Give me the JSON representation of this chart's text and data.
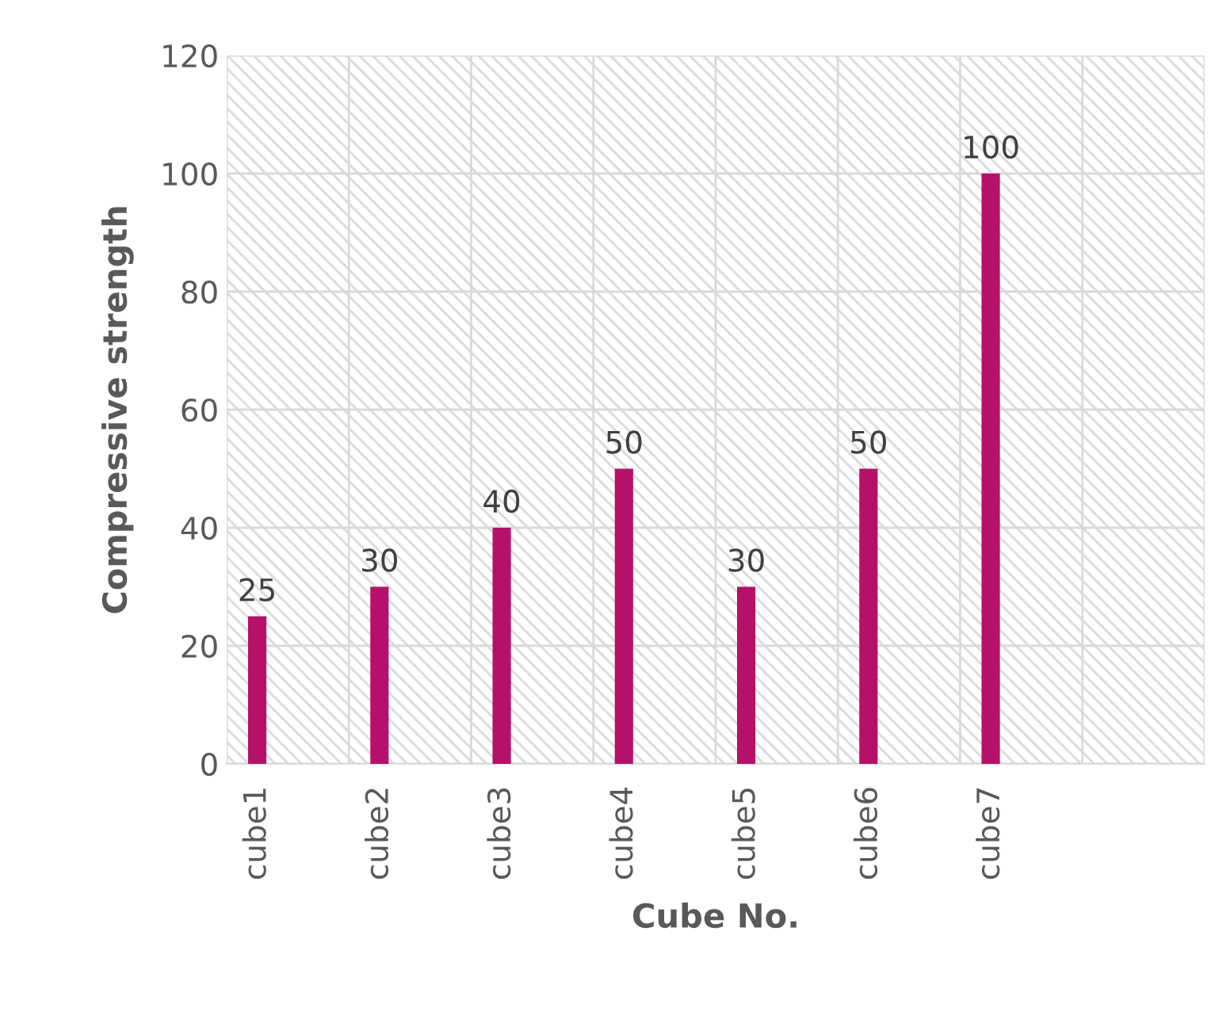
{
  "chart_data": {
    "type": "bar",
    "xlabel": "Cube No.",
    "ylabel": "Compressive strength",
    "categories": [
      "cube1",
      "cube2",
      "cube3",
      "cube4",
      "cube5",
      "cube6",
      "cube7",
      null
    ],
    "values": [
      25,
      30,
      40,
      50,
      30,
      50,
      100,
      null
    ],
    "color": "#b5116b",
    "ylim": [
      0,
      120
    ],
    "yticks": [
      0,
      20,
      40,
      60,
      80,
      100,
      120
    ],
    "grid": true,
    "data_labels": true
  }
}
